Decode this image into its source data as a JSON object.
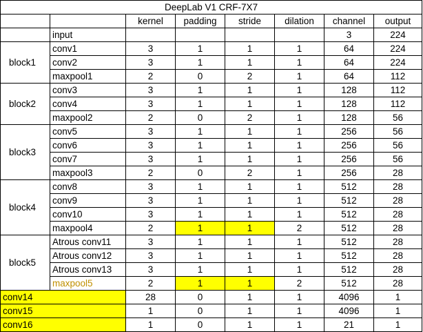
{
  "title": "DeepLab V1 CRF-7X7",
  "headers": [
    "",
    "",
    "kernel",
    "padding",
    "stride",
    "dilation",
    "channel",
    "output"
  ],
  "input_row": {
    "name": "input",
    "channel": "3",
    "output": "224"
  },
  "blocks": [
    {
      "name": "block1",
      "rows": [
        {
          "name": "conv1",
          "kernel": "3",
          "padding": "1",
          "stride": "1",
          "dilation": "1",
          "channel": "64",
          "output": "224"
        },
        {
          "name": "conv2",
          "kernel": "3",
          "padding": "1",
          "stride": "1",
          "dilation": "1",
          "channel": "64",
          "output": "224"
        },
        {
          "name": "maxpool1",
          "kernel": "2",
          "padding": "0",
          "stride": "2",
          "dilation": "1",
          "channel": "64",
          "output": "112"
        }
      ]
    },
    {
      "name": "block2",
      "rows": [
        {
          "name": "conv3",
          "kernel": "3",
          "padding": "1",
          "stride": "1",
          "dilation": "1",
          "channel": "128",
          "output": "112"
        },
        {
          "name": "conv4",
          "kernel": "3",
          "padding": "1",
          "stride": "1",
          "dilation": "1",
          "channel": "128",
          "output": "112"
        },
        {
          "name": "maxpool2",
          "kernel": "2",
          "padding": "0",
          "stride": "2",
          "dilation": "1",
          "channel": "128",
          "output": "56"
        }
      ]
    },
    {
      "name": "block3",
      "rows": [
        {
          "name": "conv5",
          "kernel": "3",
          "padding": "1",
          "stride": "1",
          "dilation": "1",
          "channel": "256",
          "output": "56"
        },
        {
          "name": "conv6",
          "kernel": "3",
          "padding": "1",
          "stride": "1",
          "dilation": "1",
          "channel": "256",
          "output": "56"
        },
        {
          "name": "conv7",
          "kernel": "3",
          "padding": "1",
          "stride": "1",
          "dilation": "1",
          "channel": "256",
          "output": "56"
        },
        {
          "name": "maxpool3",
          "kernel": "2",
          "padding": "0",
          "stride": "2",
          "dilation": "1",
          "channel": "256",
          "output": "28"
        }
      ]
    },
    {
      "name": "block4",
      "rows": [
        {
          "name": "conv8",
          "kernel": "3",
          "padding": "1",
          "stride": "1",
          "dilation": "1",
          "channel": "512",
          "output": "28"
        },
        {
          "name": "conv9",
          "kernel": "3",
          "padding": "1",
          "stride": "1",
          "dilation": "1",
          "channel": "512",
          "output": "28"
        },
        {
          "name": "conv10",
          "kernel": "3",
          "padding": "1",
          "stride": "1",
          "dilation": "1",
          "channel": "512",
          "output": "28"
        },
        {
          "name": "maxpool4",
          "kernel": "2",
          "padding": "1",
          "stride": "1",
          "dilation": "2",
          "channel": "512",
          "output": "28"
        }
      ]
    },
    {
      "name": "block5",
      "rows": [
        {
          "name": "Atrous conv11",
          "kernel": "3",
          "padding": "1",
          "stride": "1",
          "dilation": "1",
          "channel": "512",
          "output": "28"
        },
        {
          "name": "Atrous conv12",
          "kernel": "3",
          "padding": "1",
          "stride": "1",
          "dilation": "1",
          "channel": "512",
          "output": "28"
        },
        {
          "name": "Atrous conv13",
          "kernel": "3",
          "padding": "1",
          "stride": "1",
          "dilation": "1",
          "channel": "512",
          "output": "28"
        },
        {
          "name": "maxpool5",
          "kernel": "2",
          "padding": "1",
          "stride": "1",
          "dilation": "2",
          "channel": "512",
          "output": "28"
        }
      ]
    }
  ],
  "tail_rows": [
    {
      "name": "conv14",
      "kernel": "28",
      "padding": "0",
      "stride": "1",
      "dilation": "1",
      "channel": "4096",
      "output": "1"
    },
    {
      "name": "conv15",
      "kernel": "1",
      "padding": "0",
      "stride": "1",
      "dilation": "1",
      "channel": "4096",
      "output": "1"
    },
    {
      "name": "conv16",
      "kernel": "1",
      "padding": "0",
      "stride": "1",
      "dilation": "1",
      "channel": "21",
      "output": "1"
    }
  ],
  "colors": {
    "highlight": "#ffff00",
    "highlight_text": "#c09000",
    "border": "#000000"
  }
}
